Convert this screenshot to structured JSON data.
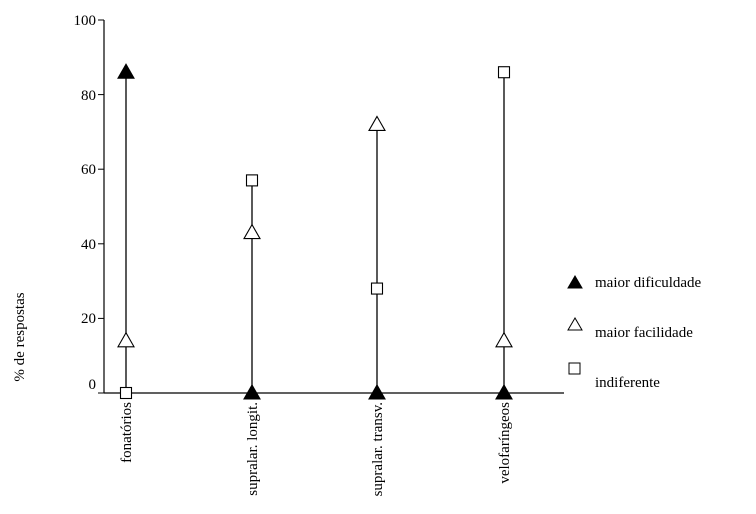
{
  "chart_data": {
    "type": "scatter",
    "ylabel": "% de respostas",
    "xlabel": "",
    "ylim": [
      0,
      100
    ],
    "y_ticks": [
      "0",
      "20",
      "40",
      "60",
      "80",
      "100"
    ],
    "categories": [
      "fonatórios",
      "supralar. longit.",
      "supralar. transv.",
      "velofaríngeos"
    ],
    "series": [
      {
        "name": "maior dificuldade",
        "marker": "triangle-filled",
        "values": [
          86,
          0,
          0,
          0
        ]
      },
      {
        "name": "maior facilidade",
        "marker": "triangle-open",
        "values": [
          14,
          43,
          72,
          14
        ]
      },
      {
        "name": "indiferente",
        "marker": "square-open",
        "values": [
          0,
          57,
          28,
          86
        ]
      }
    ],
    "drop_lines": true,
    "grid": false,
    "legend_position": "right",
    "colors": {
      "ink": "#000000",
      "background": "#ffffff"
    }
  }
}
